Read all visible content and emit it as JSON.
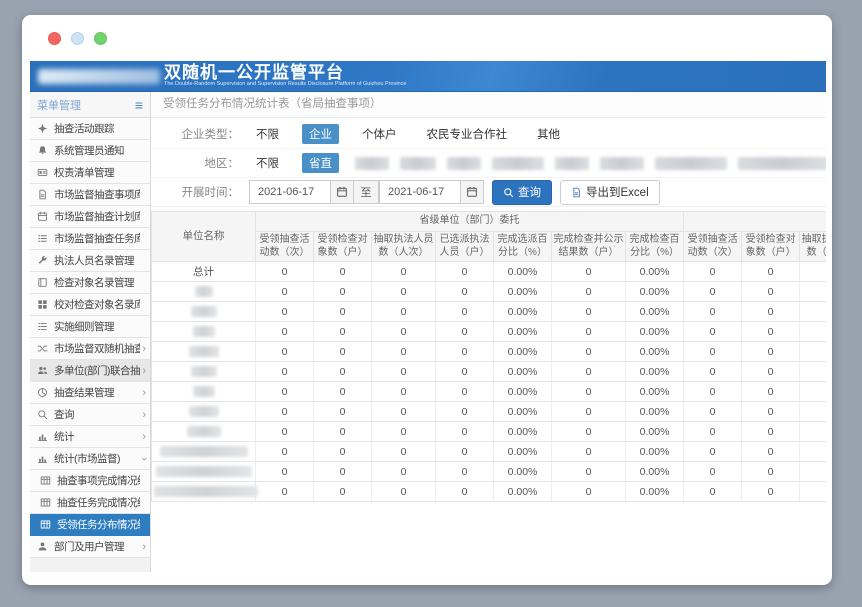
{
  "header": {
    "title": "双随机一公开监管平台",
    "subtitle": "The Double-Random Supervision and Supervision Results Disclosure Platform of Guizhou Province"
  },
  "sidebar": {
    "header": "菜单管理",
    "items": [
      {
        "icon": "compass-icon",
        "label": "抽查活动跟踪"
      },
      {
        "icon": "bell-icon",
        "label": "系统管理员通知"
      },
      {
        "icon": "card-icon",
        "label": "权责清单管理"
      },
      {
        "icon": "file-icon",
        "label": "市场监督抽查事项库"
      },
      {
        "icon": "calendar-icon",
        "label": "市场监督抽查计划库"
      },
      {
        "icon": "tasks-icon",
        "label": "市场监督抽查任务库"
      },
      {
        "icon": "wrench-icon",
        "label": "执法人员名录管理"
      },
      {
        "icon": "book-icon",
        "label": "检查对象名录管理"
      },
      {
        "icon": "grid-icon",
        "label": "校对检查对象名录库"
      },
      {
        "icon": "rules-icon",
        "label": "实施细则管理"
      },
      {
        "icon": "shuffle-icon",
        "label": "市场监督双随机抽查",
        "chevron": "right"
      },
      {
        "icon": "users-icon",
        "label": "多单位(部门)联合抽查",
        "chevron": "right",
        "highlighted": true
      },
      {
        "icon": "pie-icon",
        "label": "抽查结果管理",
        "chevron": "right"
      },
      {
        "icon": "search-icon",
        "label": "查询",
        "chevron": "right"
      },
      {
        "icon": "chart-icon",
        "label": "统计",
        "chevron": "right"
      },
      {
        "icon": "chart-icon",
        "label": "统计(市场监督)",
        "chevron": "down"
      },
      {
        "icon": "table-icon",
        "label": "抽查事项完成情况统计表",
        "sub": true
      },
      {
        "icon": "table-icon",
        "label": "抽查任务完成情况统计表",
        "sub": true
      },
      {
        "icon": "table-icon",
        "label": "受领任务分布情况统计表",
        "sub": true,
        "active": true
      },
      {
        "icon": "user-icon",
        "label": "部门及用户管理",
        "chevron": "right"
      }
    ]
  },
  "main": {
    "breadcrumb": "受领任务分布情况统计表（省局抽查事项）",
    "filters": {
      "enterprise_type": {
        "label": "企业类型：",
        "options": [
          "不限",
          "企业",
          "个体户",
          "农民专业合作社",
          "其他"
        ],
        "selected": "企业"
      },
      "region": {
        "label": "地区：",
        "options": [
          "不限",
          "省直"
        ],
        "selected": "省直",
        "redacted_count": 9
      },
      "date_range": {
        "label": "开展时间：",
        "start": "2021-06-17",
        "to_label": "至",
        "end": "2021-06-17"
      },
      "search_label": "查询",
      "export_label": "导出到Excel"
    },
    "table": {
      "unit_col": "单位名称",
      "group1": "省级单位（部门）委托",
      "group2": "",
      "columns": [
        "受领抽查活动数（次）",
        "受领检查对象数（户）",
        "抽取执法人员数（人次）",
        "已选派执法人员（户）",
        "完成选派百分比（%）",
        "完成检查并公示结果数（户）",
        "完成检查百分比（%）",
        "受领抽查活动数（次）",
        "受领检查对象数（户）",
        "抽取执法人员数（人次）"
      ],
      "rows": [
        {
          "name": "总计",
          "values": [
            "0",
            "0",
            "0",
            "0",
            "0.00%",
            "0",
            "0.00%",
            "0",
            "0",
            "0"
          ]
        },
        {
          "redacted": true,
          "values": [
            "0",
            "0",
            "0",
            "0",
            "0.00%",
            "0",
            "0.00%",
            "0",
            "0",
            "0"
          ]
        },
        {
          "redacted": true,
          "values": [
            "0",
            "0",
            "0",
            "0",
            "0.00%",
            "0",
            "0.00%",
            "0",
            "0",
            "0"
          ]
        },
        {
          "redacted": true,
          "values": [
            "0",
            "0",
            "0",
            "0",
            "0.00%",
            "0",
            "0.00%",
            "0",
            "0",
            "0"
          ]
        },
        {
          "redacted": true,
          "values": [
            "0",
            "0",
            "0",
            "0",
            "0.00%",
            "0",
            "0.00%",
            "0",
            "0",
            "0"
          ]
        },
        {
          "redacted": true,
          "values": [
            "0",
            "0",
            "0",
            "0",
            "0.00%",
            "0",
            "0.00%",
            "0",
            "0",
            "0"
          ]
        },
        {
          "redacted": true,
          "values": [
            "0",
            "0",
            "0",
            "0",
            "0.00%",
            "0",
            "0.00%",
            "0",
            "0",
            "0"
          ]
        },
        {
          "redacted": true,
          "values": [
            "0",
            "0",
            "0",
            "0",
            "0.00%",
            "0",
            "0.00%",
            "0",
            "0",
            "0"
          ]
        },
        {
          "redacted": true,
          "values": [
            "0",
            "0",
            "0",
            "0",
            "0.00%",
            "0",
            "0.00%",
            "0",
            "0",
            "0"
          ]
        },
        {
          "redacted": true,
          "values": [
            "0",
            "0",
            "0",
            "0",
            "0.00%",
            "0",
            "0.00%",
            "0",
            "0",
            "0"
          ]
        },
        {
          "redacted": true,
          "values": [
            "0",
            "0",
            "0",
            "0",
            "0.00%",
            "0",
            "0.00%",
            "0",
            "0",
            "0"
          ]
        },
        {
          "redacted": true,
          "values": [
            "0",
            "0",
            "0",
            "0",
            "0.00%",
            "0",
            "0.00%",
            "0",
            "0",
            "0"
          ]
        }
      ]
    }
  },
  "colors": {
    "header_blue": "#2d74c0",
    "accent": "#2d74bf",
    "selected_pill": "#4a90c8",
    "active_sidebar_item": "#2e7dc1",
    "close_dot": "#f4655f",
    "minimize_dot": "#cde3f7",
    "zoom_dot": "#71d36c"
  }
}
